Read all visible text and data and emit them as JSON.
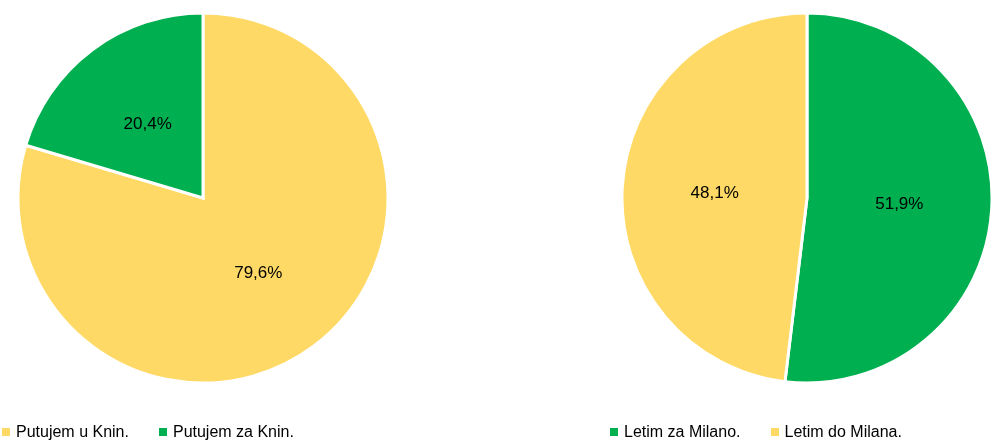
{
  "chart_data": [
    {
      "type": "pie",
      "categories": [
        "Putujem u Knin.",
        "Putujem za Knin."
      ],
      "values": [
        79.6,
        20.4
      ],
      "colors": [
        "#ffd966",
        "#00b050"
      ],
      "value_labels": [
        "79,6%",
        "20,4%"
      ],
      "legend": "bottom"
    },
    {
      "type": "pie",
      "categories": [
        "Letim za Milano.",
        "Letim do Milana."
      ],
      "values": [
        51.9,
        48.1
      ],
      "colors": [
        "#00b050",
        "#ffd966"
      ],
      "value_labels": [
        "51,9%",
        "48,1%"
      ],
      "legend": "bottom"
    }
  ]
}
